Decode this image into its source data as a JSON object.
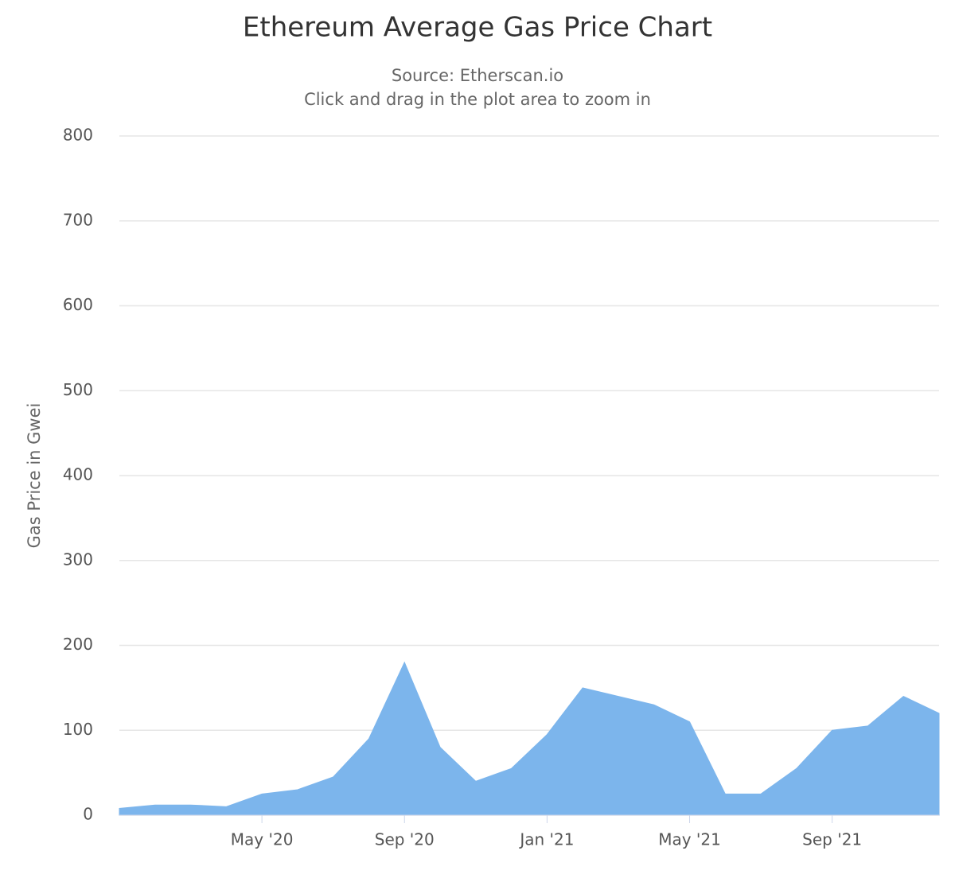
{
  "chart_data": {
    "type": "area",
    "title": "Ethereum Average Gas Price Chart",
    "subtitle": [
      "Source: Etherscan.io",
      "Click and drag in the plot area to zoom in"
    ],
    "y_label": "Gas Price in Gwei",
    "x": [
      "2020-01",
      "2020-02",
      "2020-03",
      "2020-04",
      "2020-05",
      "2020-06",
      "2020-07",
      "2020-08",
      "2020-09",
      "2020-10",
      "2020-11",
      "2020-12",
      "2021-01",
      "2021-02",
      "2021-03",
      "2021-04",
      "2021-05",
      "2021-06",
      "2021-07",
      "2021-08",
      "2021-09",
      "2021-10",
      "2021-11",
      "2021-12"
    ],
    "values": [
      8,
      12,
      12,
      10,
      25,
      30,
      45,
      90,
      180,
      80,
      40,
      55,
      95,
      150,
      140,
      130,
      110,
      25,
      25,
      55,
      100,
      105,
      140,
      120
    ],
    "color": "#7cb5ec",
    "xlim": [
      "2020-01",
      "2021-12"
    ],
    "xticks": [
      {
        "value": "2020-05",
        "label": "May '20"
      },
      {
        "value": "2020-09",
        "label": "Sep '20"
      },
      {
        "value": "2021-01",
        "label": "Jan '21"
      },
      {
        "value": "2021-05",
        "label": "May '21"
      },
      {
        "value": "2021-09",
        "label": "Sep '21"
      }
    ],
    "ylim": [
      0,
      800
    ],
    "yticks": [
      0,
      100,
      200,
      300,
      400,
      500,
      600,
      700,
      800
    ],
    "grid": true
  }
}
